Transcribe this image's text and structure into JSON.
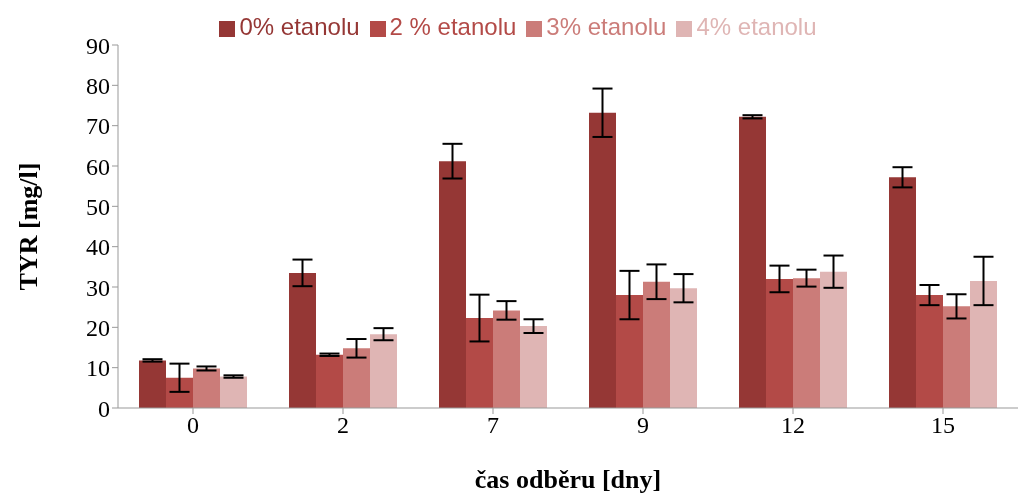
{
  "chart_data": {
    "type": "bar",
    "xlabel": "čas odběru [dny]",
    "ylabel": "TYR [mg/l]",
    "categories": [
      "0",
      "2",
      "7",
      "9",
      "12",
      "15"
    ],
    "series": [
      {
        "name": "0% etanolu",
        "color": "#953735",
        "values": [
          11.8,
          33.5,
          61.2,
          73.2,
          72.2,
          57.2
        ],
        "errors": [
          0.3,
          3.3,
          4.3,
          6,
          0.4,
          2.5
        ]
      },
      {
        "name": "2 % etanolu",
        "color": "#b34a47",
        "values": [
          7.5,
          13.2,
          22.3,
          28,
          32,
          28
        ],
        "errors": [
          3.5,
          0.3,
          5.8,
          6,
          3.3,
          2.5
        ]
      },
      {
        "name": "3% etanolu",
        "color": "#cb7c79",
        "values": [
          9.8,
          14.8,
          24.2,
          31.3,
          32.2,
          25.2
        ],
        "errors": [
          0.5,
          2.3,
          2.3,
          4.3,
          2.1,
          3
        ]
      },
      {
        "name": "4% etanolu",
        "color": "#dfb5b4",
        "values": [
          7.8,
          18.3,
          20.3,
          29.7,
          33.8,
          31.5
        ],
        "errors": [
          0.3,
          1.5,
          1.7,
          3.5,
          4,
          6
        ]
      }
    ],
    "ylim": [
      0,
      90
    ],
    "yticks": [
      0,
      10,
      20,
      30,
      40,
      50,
      60,
      70,
      80,
      90
    ],
    "grid": false,
    "legend": "top"
  }
}
